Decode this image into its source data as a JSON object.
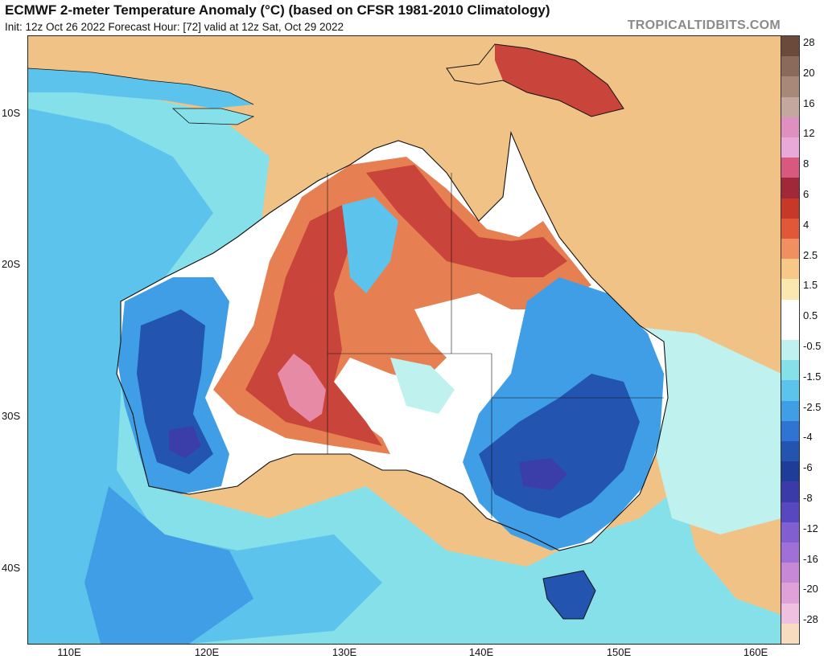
{
  "header": {
    "title": "ECMWF 2-meter Temperature Anomaly (°C) (based on CFSR 1981-2010 Climatology)",
    "subtitle": "Init: 12z Oct 26 2022   Forecast Hour: [72]   valid at 12z Sat, Oct 29 2022",
    "brand": "TROPICALTIDBITS.COM"
  },
  "axes": {
    "lat_labels": [
      "10S",
      "20S",
      "30S",
      "40S"
    ],
    "lon_labels": [
      "110E",
      "120E",
      "130E",
      "140E",
      "150E",
      "160E"
    ]
  },
  "colorbar": {
    "labels": [
      "28",
      "20",
      "16",
      "12",
      "8",
      "6",
      "4",
      "2.5",
      "1.5",
      "0.5",
      "-0.5",
      "-1.5",
      "-2.5",
      "-4",
      "-6",
      "-8",
      "-12",
      "-16",
      "-20",
      "-28"
    ],
    "colors": [
      "#6b4a3a",
      "#8a6a5a",
      "#a88878",
      "#c4a8a0",
      "#e090c0",
      "#e8a8d8",
      "#d85880",
      "#a02838",
      "#c83828",
      "#e05838",
      "#f09060",
      "#f8c888",
      "#fae8b0",
      "#ffffff",
      "#ffffff",
      "#bff2ee",
      "#86e0ea",
      "#5cc4ec",
      "#3f9ee6",
      "#2f74d2",
      "#2254b0",
      "#1e3c98",
      "#3a3aa8",
      "#5848c0",
      "#8060d0",
      "#a070d8",
      "#c888d8",
      "#e0a0d8",
      "#f0c0e0",
      "#f8dcc0"
    ]
  },
  "map": {
    "land_outline_color": "#111111",
    "palette": {
      "warm": "#f1c285",
      "hot": "#e67f52",
      "very_hot": "#c9443a",
      "extreme": "#e78aa6",
      "neutral": "#ffffff",
      "cool": "#bff2ee",
      "cold": "#86e0ea",
      "colder": "#5cc4ec",
      "very_cold": "#3f9ee6",
      "deep_cold": "#2254b0",
      "coldest": "#3b3ea8"
    }
  }
}
